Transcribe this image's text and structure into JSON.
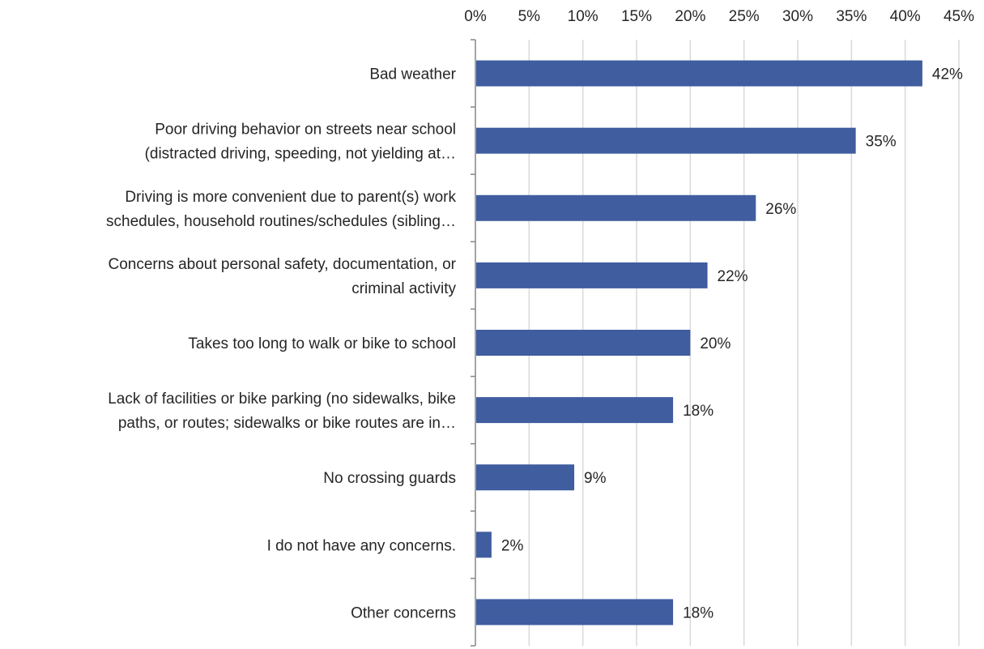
{
  "chart_data": {
    "type": "bar",
    "orientation": "horizontal",
    "title": "",
    "xlabel": "",
    "ylabel": "",
    "xlim": [
      0,
      45
    ],
    "x_ticks": [
      "0%",
      "5%",
      "10%",
      "15%",
      "20%",
      "25%",
      "30%",
      "35%",
      "40%",
      "45%"
    ],
    "x_axis_position": "top",
    "grid": "vertical",
    "legend": "none",
    "bar_color": "#3F5D9F",
    "categories": [
      [
        "Bad weather"
      ],
      [
        "Poor driving behavior on streets near school",
        "(distracted driving, speeding, not yielding at…"
      ],
      [
        "Driving is more convenient due to parent(s) work",
        "schedules, household routines/schedules (sibling…"
      ],
      [
        "Concerns about personal safety, documentation, or",
        "criminal activity"
      ],
      [
        "Takes too long to walk or bike to school"
      ],
      [
        "Lack of facilities or bike parking (no sidewalks, bike",
        "paths, or routes; sidewalks or bike routes are in…"
      ],
      [
        "No crossing guards"
      ],
      [
        "I do not have any concerns."
      ],
      [
        "Other concerns"
      ]
    ],
    "values": [
      41.6,
      35.4,
      26.1,
      21.6,
      20.0,
      18.4,
      9.2,
      1.5,
      18.4
    ],
    "data_labels": [
      "42%",
      "35%",
      "26%",
      "22%",
      "20%",
      "18%",
      "9%",
      "2%",
      "18%"
    ]
  }
}
